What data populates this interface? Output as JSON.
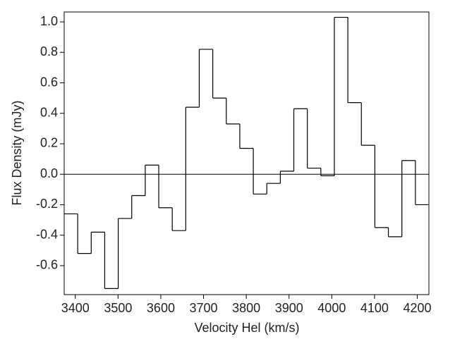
{
  "chart_data": {
    "type": "histogram",
    "xlabel": "Velocity Hel (km/s)",
    "ylabel": "Flux Density (mJy)",
    "bins": [
      3374,
      3405.6,
      3437.2,
      3468.8,
      3500.4,
      3532,
      3563.6,
      3595.2,
      3626.8,
      3658.4,
      3690,
      3721.6,
      3753.2,
      3784.8,
      3816.4,
      3848,
      3879.6,
      3911.2,
      3942.8,
      3974.4,
      4006,
      4037.6,
      4069.2,
      4100.8,
      4132.4,
      4164,
      4195.6,
      4227.2
    ],
    "values": [
      -0.26,
      -0.52,
      -0.38,
      -0.75,
      -0.29,
      -0.14,
      0.06,
      -0.22,
      -0.37,
      0.44,
      0.82,
      0.5,
      0.33,
      0.17,
      -0.13,
      -0.06,
      0.02,
      0.43,
      0.04,
      -0.01,
      1.03,
      0.47,
      0.19,
      -0.35,
      -0.41,
      0.09,
      -0.2
    ],
    "color": "#000000",
    "xlim": [
      3374,
      4227.2
    ],
    "ylim": [
      -0.79,
      1.065
    ],
    "xticks": [
      3400,
      3500,
      3600,
      3700,
      3800,
      3900,
      4000,
      4100,
      4200
    ],
    "yticks": [
      -0.6,
      -0.4,
      -0.2,
      {
        "value": 0,
        "label": "0.0"
      },
      0.2,
      0.4,
      0.6,
      0.8,
      {
        "value": 1,
        "label": "1.0"
      }
    ]
  }
}
